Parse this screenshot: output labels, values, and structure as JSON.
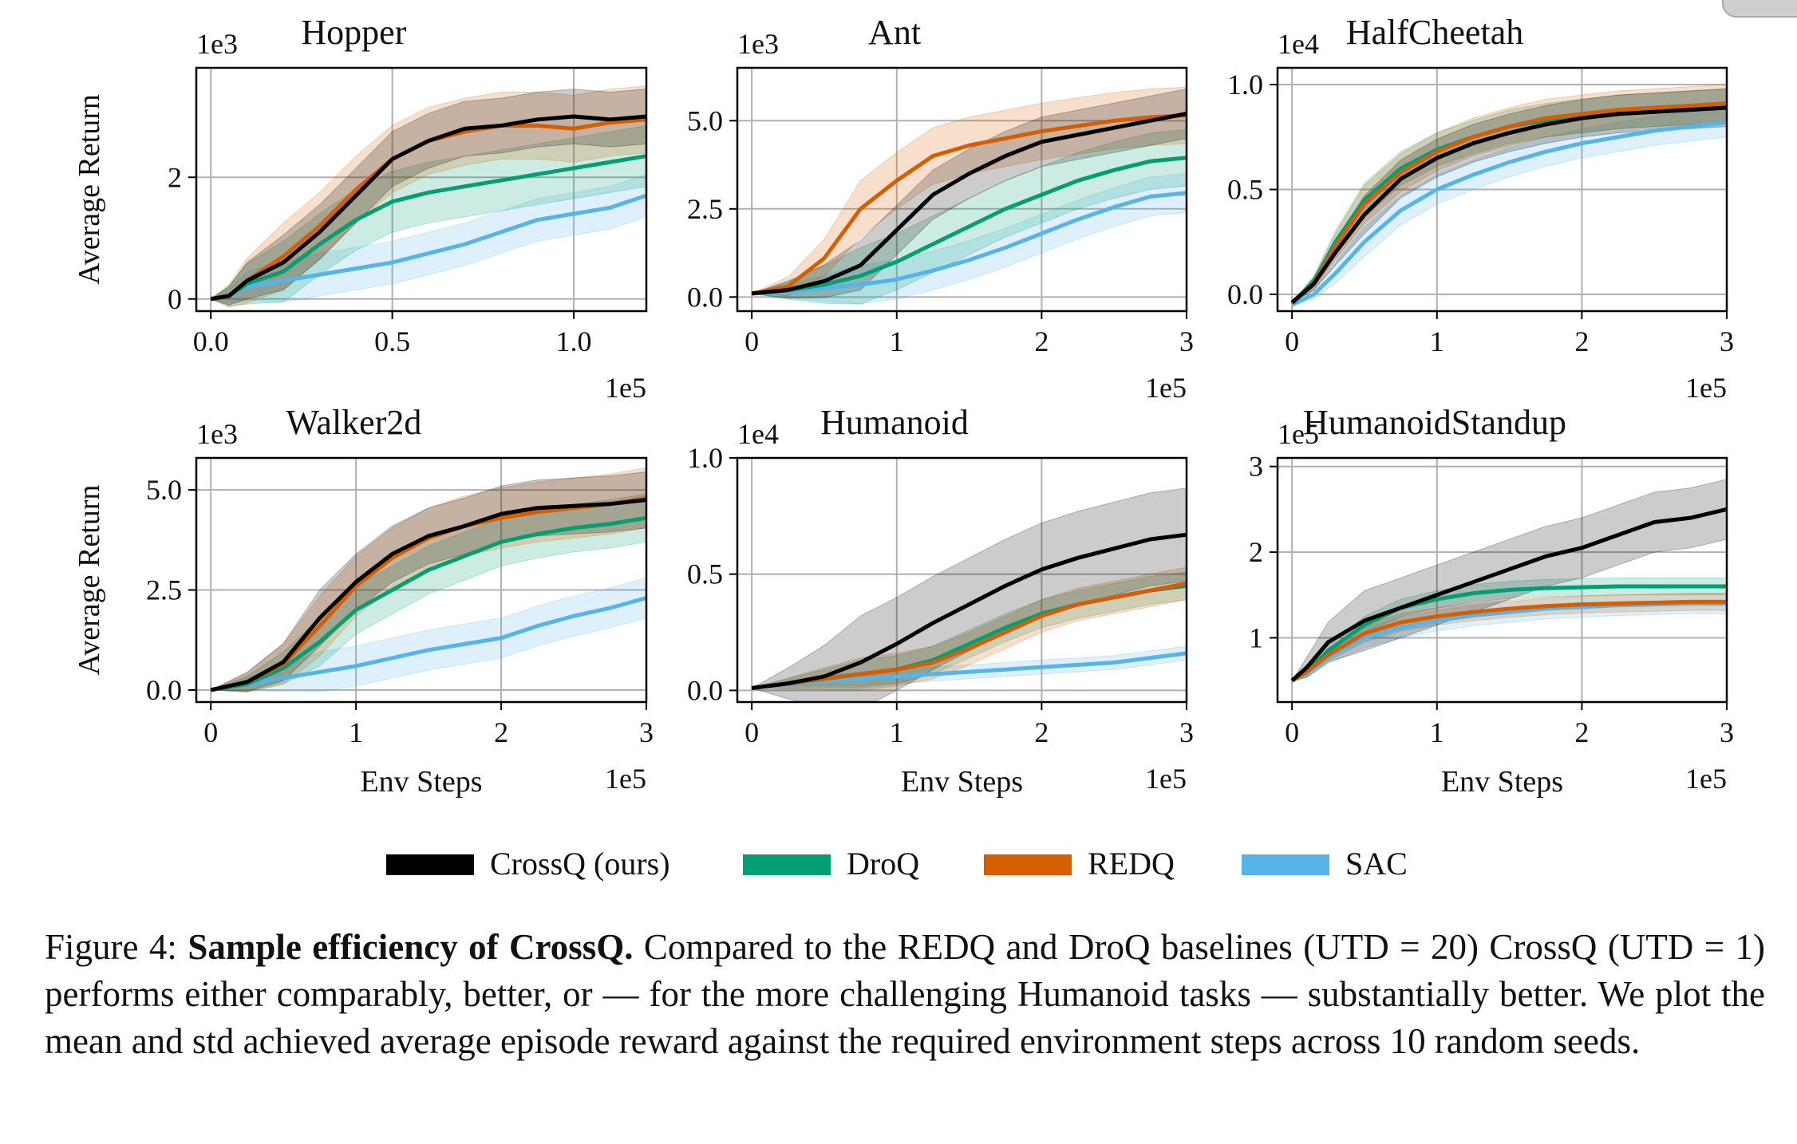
{
  "caption": {
    "label": "Figure 4:",
    "bold": "Sample efficiency of CrossQ.",
    "sentence1": "Compared to the REDQ and DroQ baselines (UTD = 20) CrossQ (UTD = 1) performs either comparably, better, or — for the more challenging Humanoid tasks — substantially better.",
    "sentence2": "We plot the mean and std achieved average episode reward against the required environment steps across 10 random seeds."
  },
  "legend": [
    {
      "name": "CrossQ (ours)",
      "color": "#000000"
    },
    {
      "name": "DroQ",
      "color": "#009e73"
    },
    {
      "name": "REDQ",
      "color": "#d55e00"
    },
    {
      "name": "SAC",
      "color": "#56b4e9"
    }
  ],
  "chart_data": [
    {
      "type": "line",
      "title": "Hopper",
      "ylabel": "Average Return",
      "xlabel": "",
      "y_multiplier": "1e3",
      "x_multiplier": "1e5",
      "xlim": [
        -0.04,
        1.2
      ],
      "ylim": [
        -0.2,
        3.8
      ],
      "grid": true,
      "xticks": [
        0.0,
        0.5,
        1.0
      ],
      "xticklabels": [
        "0.0",
        "0.5",
        "1.0"
      ],
      "yticks": [
        0,
        2
      ],
      "yticklabels": [
        "0",
        "2"
      ],
      "x": [
        0.0,
        0.05,
        0.1,
        0.2,
        0.3,
        0.4,
        0.5,
        0.6,
        0.7,
        0.8,
        0.9,
        1.0,
        1.1,
        1.2
      ],
      "series": [
        {
          "name": "CrossQ (ours)",
          "values": [
            0.0,
            0.05,
            0.3,
            0.6,
            1.1,
            1.7,
            2.3,
            2.6,
            2.8,
            2.85,
            2.95,
            3.0,
            2.95,
            3.0
          ],
          "spread": 0.45
        },
        {
          "name": "DroQ",
          "values": [
            0.0,
            0.05,
            0.25,
            0.45,
            0.9,
            1.3,
            1.6,
            1.75,
            1.85,
            1.95,
            2.05,
            2.15,
            2.25,
            2.35
          ],
          "spread": 0.5
        },
        {
          "name": "REDQ",
          "values": [
            0.0,
            0.05,
            0.3,
            0.7,
            1.2,
            1.8,
            2.3,
            2.6,
            2.75,
            2.85,
            2.85,
            2.8,
            2.9,
            2.95
          ],
          "spread": 0.55
        },
        {
          "name": "SAC",
          "values": [
            0.0,
            0.05,
            0.2,
            0.3,
            0.4,
            0.5,
            0.6,
            0.75,
            0.9,
            1.1,
            1.3,
            1.4,
            1.5,
            1.7
          ],
          "spread": 0.35
        }
      ]
    },
    {
      "type": "line",
      "title": "Ant",
      "ylabel": "",
      "xlabel": "",
      "y_multiplier": "1e3",
      "x_multiplier": "1e5",
      "xlim": [
        -0.1,
        3.0
      ],
      "ylim": [
        -0.4,
        6.5
      ],
      "grid": true,
      "xticks": [
        0,
        1,
        2,
        3
      ],
      "xticklabels": [
        "0",
        "1",
        "2",
        "3"
      ],
      "yticks": [
        0.0,
        2.5,
        5.0
      ],
      "yticklabels": [
        "0.0",
        "2.5",
        "5.0"
      ],
      "x": [
        0.0,
        0.25,
        0.5,
        0.75,
        1.0,
        1.25,
        1.5,
        1.75,
        2.0,
        2.25,
        2.5,
        2.75,
        3.0
      ],
      "series": [
        {
          "name": "CrossQ (ours)",
          "values": [
            0.1,
            0.2,
            0.45,
            0.9,
            1.9,
            2.9,
            3.5,
            4.0,
            4.4,
            4.6,
            4.8,
            5.0,
            5.2
          ],
          "spread": 0.7
        },
        {
          "name": "DroQ",
          "values": [
            0.1,
            0.2,
            0.35,
            0.6,
            1.0,
            1.5,
            2.0,
            2.5,
            2.9,
            3.3,
            3.6,
            3.85,
            3.95
          ],
          "spread": 0.8
        },
        {
          "name": "REDQ",
          "values": [
            0.1,
            0.3,
            1.1,
            2.5,
            3.3,
            4.0,
            4.3,
            4.5,
            4.7,
            4.85,
            5.0,
            5.1,
            5.15
          ],
          "spread": 0.8
        },
        {
          "name": "SAC",
          "values": [
            0.1,
            0.15,
            0.25,
            0.35,
            0.5,
            0.75,
            1.05,
            1.4,
            1.8,
            2.2,
            2.55,
            2.85,
            2.95
          ],
          "spread": 0.55
        }
      ]
    },
    {
      "type": "line",
      "title": "HalfCheetah",
      "ylabel": "",
      "xlabel": "",
      "y_multiplier": "1e4",
      "x_multiplier": "1e5",
      "xlim": [
        -0.1,
        3.0
      ],
      "ylim": [
        -0.08,
        1.08
      ],
      "grid": true,
      "xticks": [
        0,
        1,
        2,
        3
      ],
      "xticklabels": [
        "0",
        "1",
        "2",
        "3"
      ],
      "yticks": [
        0.0,
        0.5,
        1.0
      ],
      "yticklabels": [
        "0.0",
        "0.5",
        "1.0"
      ],
      "x": [
        0.0,
        0.15,
        0.3,
        0.5,
        0.75,
        1.0,
        1.25,
        1.5,
        1.75,
        2.0,
        2.25,
        2.5,
        2.75,
        3.0
      ],
      "series": [
        {
          "name": "CrossQ (ours)",
          "values": [
            -0.04,
            0.05,
            0.2,
            0.38,
            0.55,
            0.65,
            0.72,
            0.77,
            0.81,
            0.84,
            0.86,
            0.87,
            0.88,
            0.89
          ],
          "spread": 0.09
        },
        {
          "name": "DroQ",
          "values": [
            -0.04,
            0.06,
            0.25,
            0.45,
            0.6,
            0.69,
            0.75,
            0.8,
            0.83,
            0.85,
            0.87,
            0.88,
            0.89,
            0.9
          ],
          "spread": 0.08
        },
        {
          "name": "REDQ",
          "values": [
            -0.04,
            0.05,
            0.23,
            0.43,
            0.58,
            0.68,
            0.75,
            0.8,
            0.84,
            0.86,
            0.88,
            0.89,
            0.9,
            0.91
          ],
          "spread": 0.09
        },
        {
          "name": "SAC",
          "values": [
            -0.05,
            0.0,
            0.1,
            0.25,
            0.4,
            0.5,
            0.57,
            0.63,
            0.68,
            0.72,
            0.75,
            0.78,
            0.8,
            0.82
          ],
          "spread": 0.07
        }
      ]
    },
    {
      "type": "line",
      "title": "Walker2d",
      "ylabel": "Average Return",
      "xlabel": "Env Steps",
      "y_multiplier": "1e3",
      "x_multiplier": "1e5",
      "xlim": [
        -0.1,
        3.0
      ],
      "ylim": [
        -0.3,
        5.8
      ],
      "grid": true,
      "xticks": [
        0,
        1,
        2,
        3
      ],
      "xticklabels": [
        "0",
        "1",
        "2",
        "3"
      ],
      "yticks": [
        0.0,
        2.5,
        5.0
      ],
      "yticklabels": [
        "0.0",
        "2.5",
        "5.0"
      ],
      "x": [
        0.0,
        0.25,
        0.5,
        0.75,
        1.0,
        1.25,
        1.5,
        1.75,
        2.0,
        2.25,
        2.5,
        2.75,
        3.0
      ],
      "series": [
        {
          "name": "CrossQ (ours)",
          "values": [
            0.0,
            0.2,
            0.7,
            1.8,
            2.7,
            3.4,
            3.85,
            4.1,
            4.4,
            4.55,
            4.6,
            4.65,
            4.75
          ],
          "spread": 0.7
        },
        {
          "name": "DroQ",
          "values": [
            0.0,
            0.15,
            0.55,
            1.2,
            2.0,
            2.5,
            3.0,
            3.35,
            3.7,
            3.9,
            4.05,
            4.15,
            4.3
          ],
          "spread": 0.6
        },
        {
          "name": "REDQ",
          "values": [
            0.0,
            0.2,
            0.65,
            1.6,
            2.6,
            3.3,
            3.8,
            4.1,
            4.3,
            4.45,
            4.55,
            4.65,
            4.8
          ],
          "spread": 0.75
        },
        {
          "name": "SAC",
          "values": [
            0.0,
            0.15,
            0.3,
            0.45,
            0.6,
            0.8,
            1.0,
            1.15,
            1.3,
            1.6,
            1.85,
            2.05,
            2.3
          ],
          "spread": 0.5
        }
      ]
    },
    {
      "type": "line",
      "title": "Humanoid",
      "ylabel": "",
      "xlabel": "Env Steps",
      "y_multiplier": "1e4",
      "x_multiplier": "1e5",
      "xlim": [
        -0.1,
        3.0
      ],
      "ylim": [
        -0.05,
        1.0
      ],
      "grid": true,
      "xticks": [
        0,
        1,
        2,
        3
      ],
      "xticklabels": [
        "0",
        "1",
        "2",
        "3"
      ],
      "yticks": [
        0.0,
        0.5,
        1.0
      ],
      "yticklabels": [
        "0.0",
        "0.5",
        "1.0"
      ],
      "x": [
        0.0,
        0.25,
        0.5,
        0.75,
        1.0,
        1.25,
        1.5,
        1.75,
        2.0,
        2.25,
        2.5,
        2.75,
        3.0
      ],
      "series": [
        {
          "name": "CrossQ (ours)",
          "values": [
            0.01,
            0.03,
            0.06,
            0.12,
            0.2,
            0.29,
            0.37,
            0.45,
            0.52,
            0.57,
            0.61,
            0.65,
            0.67
          ],
          "spread": 0.2
        },
        {
          "name": "DroQ",
          "values": [
            0.01,
            0.03,
            0.05,
            0.07,
            0.09,
            0.13,
            0.2,
            0.27,
            0.33,
            0.37,
            0.4,
            0.43,
            0.45
          ],
          "spread": 0.06
        },
        {
          "name": "REDQ",
          "values": [
            0.01,
            0.03,
            0.05,
            0.07,
            0.09,
            0.12,
            0.18,
            0.25,
            0.32,
            0.37,
            0.4,
            0.43,
            0.46
          ],
          "spread": 0.07
        },
        {
          "name": "SAC",
          "values": [
            0.01,
            0.03,
            0.04,
            0.05,
            0.06,
            0.07,
            0.08,
            0.09,
            0.1,
            0.11,
            0.12,
            0.14,
            0.16
          ],
          "spread": 0.03
        }
      ]
    },
    {
      "type": "line",
      "title": "HumanoidStandup",
      "ylabel": "",
      "xlabel": "Env Steps",
      "y_multiplier": "1e5",
      "x_multiplier": "1e5",
      "xlim": [
        -0.1,
        3.0
      ],
      "ylim": [
        0.25,
        3.1
      ],
      "grid": true,
      "xticks": [
        0,
        1,
        2,
        3
      ],
      "xticklabels": [
        "0",
        "1",
        "2",
        "3"
      ],
      "yticks": [
        1,
        2,
        3
      ],
      "yticklabels": [
        "1",
        "2",
        "3"
      ],
      "x": [
        0.0,
        0.1,
        0.25,
        0.5,
        0.75,
        1.0,
        1.25,
        1.5,
        1.75,
        2.0,
        2.25,
        2.5,
        2.75,
        3.0
      ],
      "series": [
        {
          "name": "CrossQ (ours)",
          "values": [
            0.5,
            0.65,
            0.95,
            1.2,
            1.35,
            1.5,
            1.65,
            1.8,
            1.95,
            2.05,
            2.2,
            2.35,
            2.4,
            2.5
          ],
          "spread": 0.35
        },
        {
          "name": "DroQ",
          "values": [
            0.5,
            0.6,
            0.85,
            1.15,
            1.35,
            1.45,
            1.52,
            1.56,
            1.58,
            1.59,
            1.6,
            1.6,
            1.6,
            1.6
          ],
          "spread": 0.1
        },
        {
          "name": "REDQ",
          "values": [
            0.5,
            0.6,
            0.8,
            1.05,
            1.18,
            1.25,
            1.3,
            1.34,
            1.37,
            1.39,
            1.4,
            1.41,
            1.42,
            1.42
          ],
          "spread": 0.1
        },
        {
          "name": "SAC",
          "values": [
            0.5,
            0.58,
            0.78,
            1.0,
            1.12,
            1.2,
            1.26,
            1.3,
            1.34,
            1.36,
            1.38,
            1.39,
            1.4,
            1.4
          ],
          "spread": 0.12
        }
      ]
    }
  ]
}
